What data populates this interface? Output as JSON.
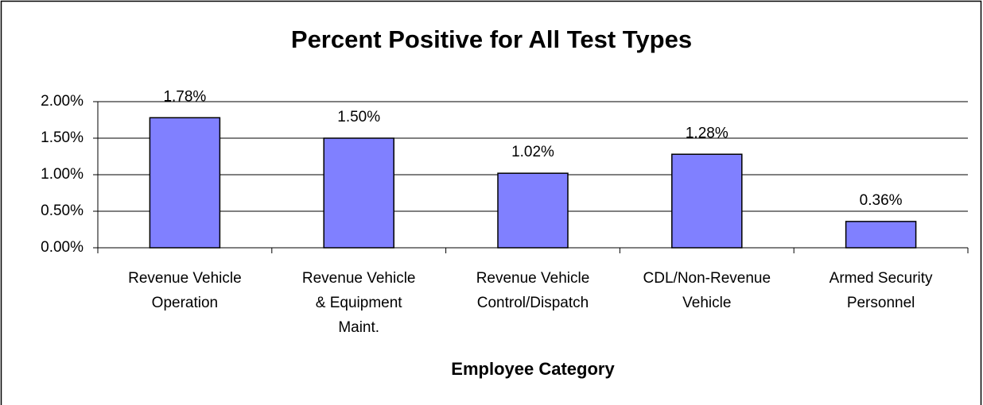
{
  "chart_data": {
    "type": "bar",
    "title": "Percent Positive for All Test Types",
    "x_label": "Employee Category",
    "categories": [
      "Revenue Vehicle\nOperation",
      "Revenue Vehicle\n& Equipment\nMaint.",
      "Revenue Vehicle\nControl/Dispatch",
      "CDL/Non-Revenue\nVehicle",
      "Armed Security\nPersonnel"
    ],
    "values": [
      1.78,
      1.5,
      1.02,
      1.28,
      0.36
    ],
    "value_labels": [
      "1.78%",
      "1.50%",
      "1.02%",
      "1.28%",
      "0.36%"
    ],
    "color": "#8080ff",
    "ylim": [
      0,
      2
    ],
    "yticks": [
      {
        "value": 0,
        "label": "0.00%"
      },
      {
        "value": 0.5,
        "label": "0.50%"
      },
      {
        "value": 1,
        "label": "1.00%"
      },
      {
        "value": 1.5,
        "label": "1.50%"
      },
      {
        "value": 2,
        "label": "2.00%"
      }
    ],
    "grid": true
  }
}
